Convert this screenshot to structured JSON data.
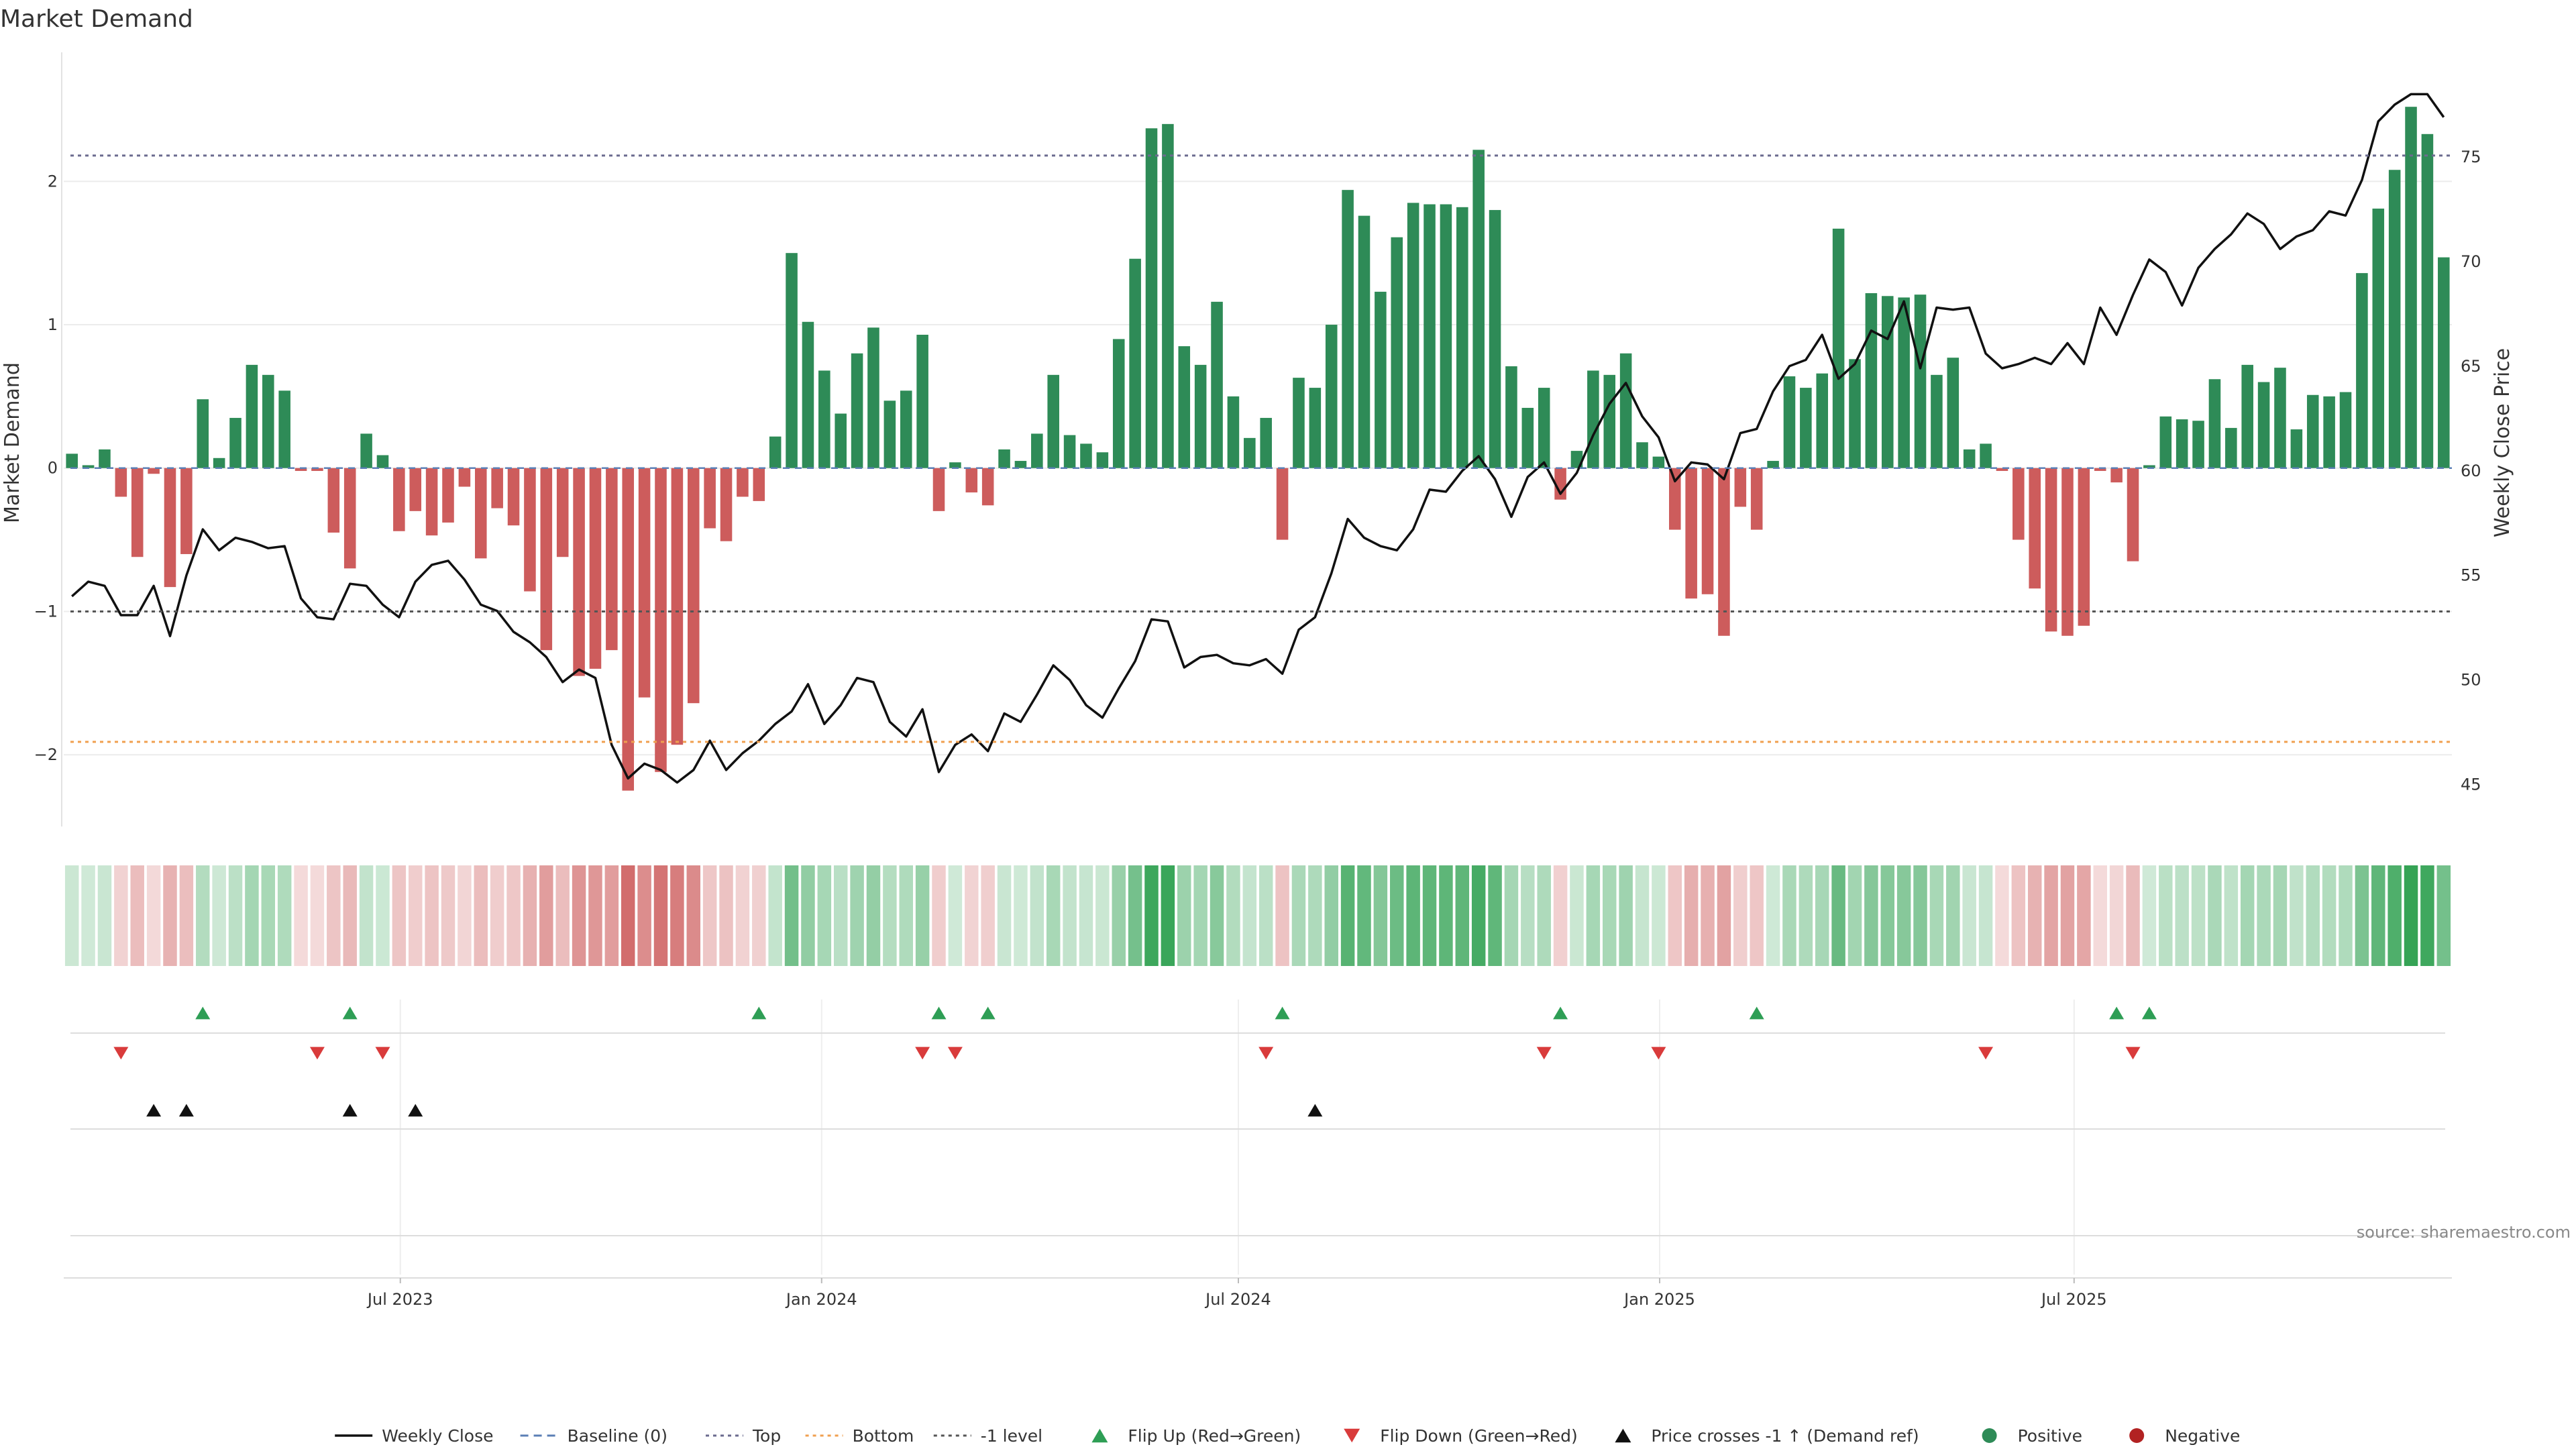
{
  "chart_data": {
    "type": "bar",
    "title": "Market Demand",
    "ylabel": "Market Demand",
    "y2label": "Weekly Close Price",
    "ylim": [
      -2.5,
      2.9
    ],
    "y2lim": [
      43,
      80
    ],
    "yticks": [
      2,
      1,
      0,
      -1,
      -2
    ],
    "ytick_labels": [
      "2",
      "1",
      "0",
      "−1",
      "−2"
    ],
    "y2ticks": [
      75,
      70,
      65,
      60,
      55,
      50,
      45
    ],
    "date_start": "2023-02-04",
    "date_end": "2025-12-13",
    "xticks": [
      "Jul 2023",
      "Jan 2024",
      "Jul 2024",
      "Jan 2025",
      "Jul 2025"
    ],
    "reference_lines": {
      "top": 2.18,
      "bottom": -1.91,
      "minus_one_level": -1.0,
      "baseline": 0
    },
    "series": [
      {
        "name": "Market Demand",
        "values": [
          0.1,
          0.02,
          0.13,
          -0.2,
          -0.62,
          -0.04,
          -0.83,
          -0.6,
          0.48,
          0.07,
          0.35,
          0.72,
          0.65,
          0.54,
          -0.02,
          -0.02,
          -0.45,
          -0.7,
          0.24,
          0.09,
          -0.44,
          -0.3,
          -0.47,
          -0.38,
          -0.13,
          -0.63,
          -0.28,
          -0.4,
          -0.86,
          -1.27,
          -0.62,
          -1.45,
          -1.4,
          -1.27,
          -2.25,
          -1.6,
          -2.12,
          -1.93,
          -1.64,
          -0.42,
          -0.51,
          -0.2,
          -0.23,
          0.22,
          1.5,
          1.02,
          0.68,
          0.38,
          0.8,
          0.98,
          0.47,
          0.54,
          0.93,
          -0.3,
          0.04,
          -0.17,
          -0.26,
          0.13,
          0.05,
          0.24,
          0.65,
          0.23,
          0.17,
          0.11,
          0.9,
          1.46,
          2.37,
          2.4,
          0.85,
          0.72,
          1.16,
          0.5,
          0.21,
          0.35,
          -0.5,
          0.63,
          0.56,
          1.0,
          1.94,
          1.76,
          1.23,
          1.61,
          1.85,
          1.84,
          1.84,
          1.82,
          2.22,
          1.8,
          0.71,
          0.42,
          0.56,
          -0.22,
          0.12,
          0.68,
          0.65,
          0.8,
          0.18,
          0.08,
          -0.43,
          -0.91,
          -0.88,
          -1.17,
          -0.27,
          -0.43,
          0.05,
          0.64,
          0.56,
          0.66,
          1.67,
          0.76,
          1.22,
          1.2,
          1.19,
          1.21,
          0.65,
          0.77,
          0.13,
          0.17,
          -0.02,
          -0.5,
          -0.84,
          -1.14,
          -1.17,
          -1.1,
          -0.02,
          -0.1,
          -0.65,
          0.02,
          0.36,
          0.34,
          0.33,
          0.62,
          0.28,
          0.72,
          0.6,
          0.7,
          0.27,
          0.51,
          0.5,
          0.53,
          1.36,
          1.81,
          2.08,
          2.52,
          2.33,
          1.47
        ]
      },
      {
        "name": "Weekly Close",
        "values": [
          54,
          54.7,
          54.5,
          53.1,
          53.1,
          54.5,
          52.1,
          55,
          57.2,
          56.2,
          56.8,
          56.6,
          56.3,
          56.4,
          53.9,
          53,
          52.9,
          54.6,
          54.5,
          53.6,
          53,
          54.7,
          55.5,
          55.7,
          54.8,
          53.6,
          53.3,
          52.3,
          51.8,
          51.1,
          49.9,
          50.5,
          50.1,
          46.9,
          45.3,
          46,
          45.7,
          45.1,
          45.7,
          47.1,
          45.7,
          46.5,
          47.1,
          47.9,
          48.5,
          49.8,
          47.9,
          48.8,
          50.1,
          49.9,
          48,
          47.3,
          48.6,
          45.6,
          46.9,
          47.4,
          46.6,
          48.4,
          48,
          49.3,
          50.7,
          50,
          48.8,
          48.2,
          49.6,
          50.9,
          52.9,
          52.8,
          50.6,
          51.1,
          51.2,
          50.8,
          50.7,
          51,
          50.3,
          52.4,
          53,
          55.1,
          57.7,
          56.8,
          56.4,
          56.2,
          57.2,
          59.1,
          59,
          60,
          60.7,
          59.6,
          57.8,
          59.7,
          60.4,
          58.9,
          59.9,
          61.7,
          63.2,
          64.2,
          62.6,
          61.6,
          59.5,
          60.4,
          60.3,
          59.6,
          61.8,
          62,
          63.8,
          65,
          65.3,
          66.5,
          64.4,
          65.1,
          66.7,
          66.3,
          68.1,
          64.9,
          67.8,
          67.7,
          67.8,
          65.6,
          64.9,
          65.1,
          65.4,
          65.1,
          66.1,
          65.1,
          67.8,
          66.5,
          68.4,
          70.1,
          69.5,
          67.9,
          69.7,
          70.6,
          71.3,
          72.3,
          71.8,
          70.6,
          71.2,
          71.5,
          72.4,
          72.2,
          73.9,
          76.7,
          77.5,
          78,
          78,
          76.9
        ]
      }
    ],
    "flip_up_weeks": [
      8,
      17,
      42,
      53,
      56,
      74,
      91,
      103,
      125,
      127
    ],
    "flip_down_weeks": [
      3,
      15,
      19,
      52,
      54,
      73,
      90,
      97,
      117,
      126
    ],
    "price_crosses_weeks": [
      5,
      7,
      17,
      21,
      76
    ],
    "legend": [
      {
        "label": "Weekly Close",
        "kind": "line",
        "color": "#111111"
      },
      {
        "label": "Baseline (0)",
        "kind": "dash",
        "color": "#5b7fb5"
      },
      {
        "label": "Top",
        "kind": "dot",
        "color": "#6b6b8f"
      },
      {
        "label": "Bottom",
        "kind": "dot",
        "color": "#f0a050"
      },
      {
        "label": "-1 level",
        "kind": "dot",
        "color": "#555555"
      },
      {
        "label": "Flip Up (Red→Green)",
        "kind": "tri-up",
        "color": "#2e9e55"
      },
      {
        "label": "Flip Down (Green→Red)",
        "kind": "tri-down",
        "color": "#d93b3b"
      },
      {
        "label": "Price crosses -1 ↑ (Demand ref)",
        "kind": "tri-up",
        "color": "#111111"
      },
      {
        "label": "Positive",
        "kind": "circle",
        "color": "#2e8b57"
      },
      {
        "label": "Negative",
        "kind": "circle",
        "color": "#b22222"
      }
    ],
    "source": "source: sharemaestro.com"
  },
  "colors": {
    "positive": "#2e8b57",
    "negative": "#cd5c5c",
    "price": "#111111",
    "flip_up": "#2e9e55",
    "flip_down": "#d93b3b"
  }
}
